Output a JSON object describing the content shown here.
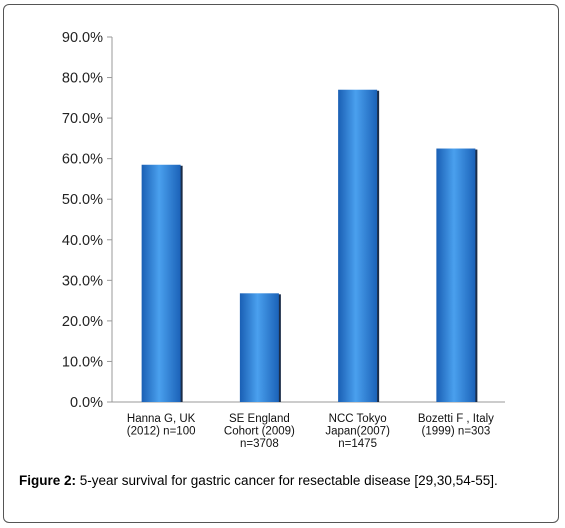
{
  "chart_data": {
    "type": "bar",
    "title": "",
    "xlabel": "",
    "ylabel": "",
    "categories": [
      [
        "Hanna G, UK",
        "(2012) n=100"
      ],
      [
        "SE England",
        "Cohort (2009)",
        "n=3708"
      ],
      [
        "NCC Tokyo",
        "Japan(2007)",
        "n=1475"
      ],
      [
        "Bozetti F , Italy",
        "(1999) n=303"
      ]
    ],
    "values": [
      58.5,
      26.8,
      77.0,
      62.5
    ],
    "ylim": [
      0,
      90
    ],
    "yticks": [
      0,
      10,
      20,
      30,
      40,
      50,
      60,
      70,
      80,
      90
    ],
    "ytick_labels": [
      "0.0%",
      "10.0%",
      "20.0%",
      "30.0%",
      "40.0%",
      "50.0%",
      "60.0%",
      "70.0%",
      "80.0%",
      "90.0%"
    ],
    "grid": false,
    "bar_color": "#2e7fd6"
  },
  "caption": {
    "label": "Figure 2:",
    "text": " 5-year survival for gastric cancer for resectable disease [29,30,54-55]."
  }
}
